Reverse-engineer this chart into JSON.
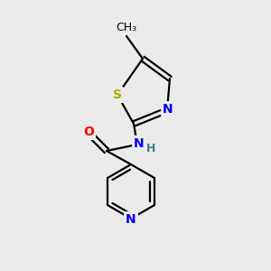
{
  "background_color": "#ebebeb",
  "bond_color": "#000000",
  "atom_colors": {
    "N": "#0000ff",
    "O": "#ff0000",
    "S": "#aaaa00",
    "C": "#000000",
    "H": "#3a8080"
  },
  "font_size_atom": 10,
  "font_size_H": 9,
  "font_size_methyl": 9,
  "line_width": 1.6,
  "fig_size": [
    3.0,
    3.0
  ],
  "dpi": 100
}
